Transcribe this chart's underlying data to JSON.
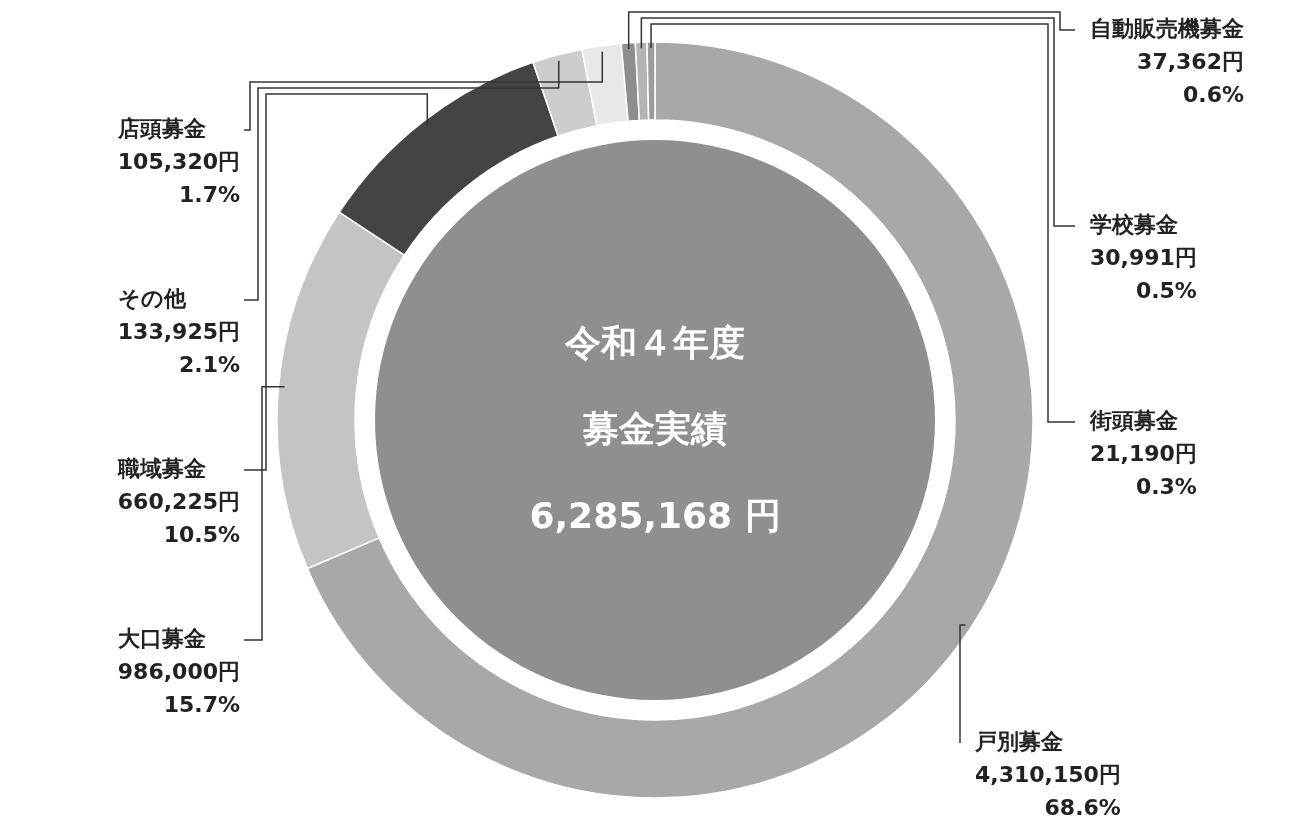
{
  "chart_data": {
    "type": "donut",
    "categories": [
      "戸別募金",
      "大口募金",
      "職域募金",
      "その他",
      "店頭募金",
      "自動販売機募金",
      "学校募金",
      "街頭募金"
    ],
    "values": [
      4310150,
      986000,
      660225,
      133925,
      105320,
      37362,
      30991,
      21190
    ],
    "colors": [
      "#a8a8a8",
      "#c4c4c4",
      "#444444",
      "#cccccc",
      "#e8e8e8",
      "#8e8e8e",
      "#b4b4b4",
      "#9c9c9c"
    ],
    "value_labels": [
      "4,310,150円\n68.6%",
      "986,000円\n15.7%",
      "660,225円\n10.5%",
      "133,925円\n2.1%",
      "105,320円\n1.7%",
      "37,362円\n0.6%",
      "30,991円\n0.5%",
      "21,190円\n0.3%"
    ],
    "annotations": [
      "令和４年度",
      "募金実績",
      "6,285,168 円"
    ]
  }
}
